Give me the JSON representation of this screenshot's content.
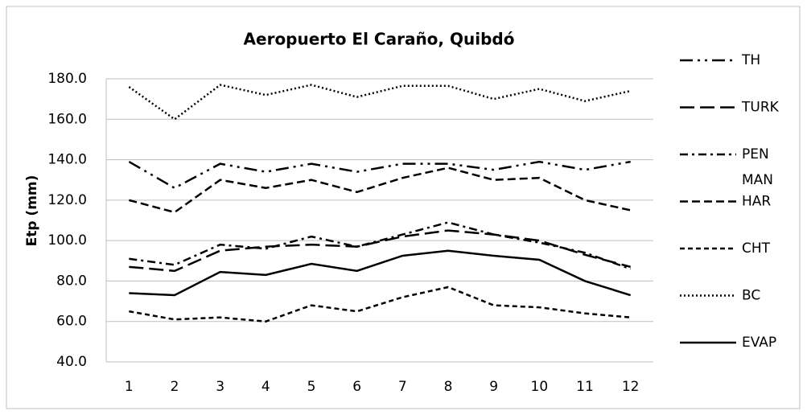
{
  "chart_data": {
    "type": "line",
    "title": "Aeropuerto El Caraño, Quibdó",
    "y_label": "Etp (mm)",
    "categories": [
      "1",
      "2",
      "3",
      "4",
      "5",
      "6",
      "7",
      "8",
      "9",
      "10",
      "11",
      "12"
    ],
    "ylim": [
      40,
      180
    ],
    "yticks": [
      {
        "value": 40,
        "label": "40.0"
      },
      {
        "value": 60,
        "label": "60.0"
      },
      {
        "value": 80,
        "label": "80.0"
      },
      {
        "value": 100,
        "label": "100.0"
      },
      {
        "value": 120,
        "label": "120.0"
      },
      {
        "value": 140,
        "label": "140.0"
      },
      {
        "value": 160,
        "label": "160.0"
      },
      {
        "value": 180,
        "label": "180.0"
      }
    ],
    "grid": true,
    "legend": "right",
    "series": [
      {
        "name": "TH",
        "color": "#000000",
        "line_style": "long-dash-dot-dot",
        "values": [
          139,
          126,
          138,
          134,
          138,
          134,
          138,
          138,
          135,
          139,
          135,
          139
        ]
      },
      {
        "name": "TURK",
        "color": "#000000",
        "line_style": "long-dash",
        "values": [
          87,
          85,
          95,
          97,
          98,
          97,
          102,
          105,
          103,
          100,
          93,
          87
        ]
      },
      {
        "name": "PEN MAN",
        "color": "#000000",
        "line_style": "dash-dot",
        "values": [
          91,
          88,
          98,
          96,
          102,
          97,
          103,
          109,
          103,
          99,
          94,
          86
        ]
      },
      {
        "name": "HAR",
        "color": "#000000",
        "line_style": "dash",
        "values": [
          120,
          114,
          130,
          126,
          130,
          124,
          131,
          136,
          130,
          131,
          120,
          115
        ]
      },
      {
        "name": "CHT",
        "color": "#000000",
        "line_style": "short-dash",
        "values": [
          65,
          61,
          62,
          60,
          68,
          65,
          72,
          77,
          68,
          67,
          64,
          62
        ]
      },
      {
        "name": "BC",
        "color": "#000000",
        "line_style": "dot",
        "values": [
          176,
          160,
          177,
          172,
          177,
          171,
          176.5,
          176.5,
          170,
          175,
          169,
          174
        ]
      },
      {
        "name": "EVAP",
        "color": "#000000",
        "line_style": "solid",
        "values": [
          74,
          73,
          84.5,
          83,
          88.5,
          85,
          92.5,
          95,
          92.5,
          90.5,
          80,
          73
        ]
      }
    ]
  }
}
